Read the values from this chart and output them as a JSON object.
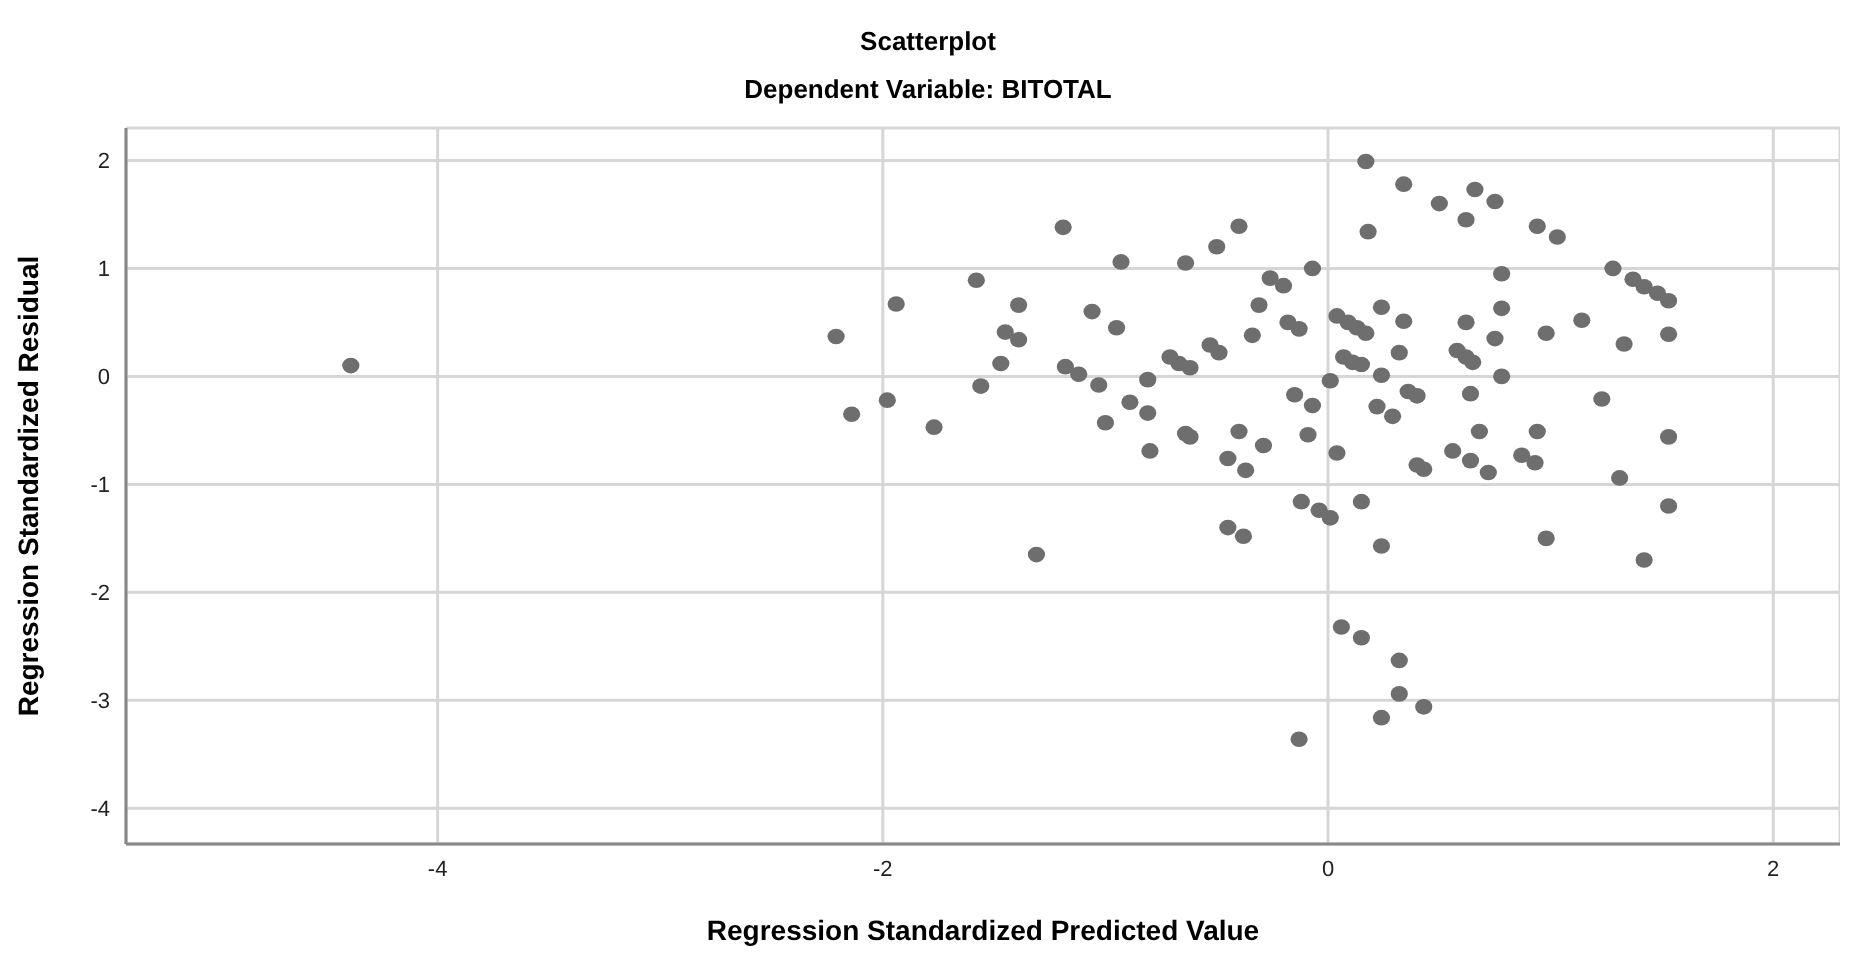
{
  "chart_data": {
    "type": "scatter",
    "title": "Scatterplot",
    "subtitle": "Dependent Variable: BITOTAL",
    "xlabel": "Regression Standardized Predicted Value",
    "ylabel": "Regression Standardized Residual",
    "xlim": [
      -5.4,
      2.3
    ],
    "ylim": [
      -4.33,
      2.3
    ],
    "xticks": [
      -4,
      -2,
      0,
      2
    ],
    "yticks": [
      -4,
      -3,
      -2,
      -1,
      0,
      1,
      2
    ],
    "grid": true,
    "marker": "circle",
    "series": [
      {
        "color": "#6e6e6e",
        "x": [
          -4.39,
          -2.21,
          -2.14,
          -1.94,
          -1.98,
          -1.77,
          -1.58,
          -1.39,
          -1.45,
          -1.39,
          -1.47,
          -1.56,
          -1.31,
          -1.19,
          -0.93,
          -1.06,
          -0.95,
          -1.18,
          -1.12,
          -1.03,
          -1.0,
          -0.89,
          -0.81,
          -0.81,
          -0.8,
          -0.64,
          -0.5,
          -0.4,
          -0.71,
          -0.67,
          -0.62,
          -0.53,
          -0.49,
          -0.64,
          -0.62,
          -0.4,
          -0.29,
          -0.45,
          -0.37,
          -0.45,
          -0.38,
          -0.34,
          -0.31,
          -0.26,
          -0.2,
          -0.18,
          -0.13,
          -0.07,
          -0.15,
          -0.07,
          0.01,
          -0.09,
          0.04,
          -0.12,
          -0.04,
          0.01,
          0.15,
          0.24,
          -0.13,
          0.06,
          0.15,
          0.32,
          0.24,
          0.32,
          0.43,
          0.17,
          0.18,
          0.34,
          0.5,
          0.62,
          0.66,
          0.04,
          0.09,
          0.13,
          0.17,
          0.24,
          0.34,
          0.07,
          0.11,
          0.15,
          0.24,
          0.32,
          0.22,
          0.29,
          0.36,
          0.4,
          0.4,
          0.43,
          0.56,
          0.64,
          0.62,
          0.58,
          0.62,
          0.65,
          0.64,
          0.68,
          0.72,
          0.75,
          0.94,
          1.03,
          0.78,
          0.78,
          0.75,
          0.98,
          1.14,
          0.78,
          0.94,
          0.87,
          0.93,
          1.28,
          1.37,
          1.42,
          1.48,
          1.53,
          1.33,
          1.53,
          1.23,
          1.31,
          1.53,
          1.53,
          0.98,
          1.42
        ],
        "values": [
          0.1,
          0.37,
          -0.35,
          0.67,
          -0.22,
          -0.47,
          0.89,
          0.66,
          0.41,
          0.34,
          0.12,
          -0.09,
          -1.65,
          1.38,
          1.06,
          0.6,
          0.45,
          0.09,
          0.02,
          -0.08,
          -0.43,
          -0.24,
          -0.03,
          -0.34,
          -0.69,
          1.05,
          1.2,
          1.39,
          0.18,
          0.12,
          0.08,
          0.29,
          0.22,
          -0.53,
          -0.56,
          -0.51,
          -0.64,
          -0.76,
          -0.87,
          -1.4,
          -1.48,
          0.38,
          0.66,
          0.91,
          0.84,
          0.5,
          0.44,
          1.0,
          -0.17,
          -0.27,
          -0.04,
          -0.54,
          -0.71,
          -1.16,
          -1.24,
          -1.31,
          -1.16,
          -1.57,
          -3.36,
          -2.32,
          -2.42,
          -2.63,
          -3.16,
          -2.94,
          -3.06,
          1.99,
          1.34,
          1.78,
          1.6,
          1.45,
          1.73,
          0.56,
          0.5,
          0.45,
          0.4,
          0.64,
          0.51,
          0.18,
          0.13,
          0.11,
          0.01,
          0.22,
          -0.28,
          -0.37,
          -0.14,
          -0.18,
          -0.82,
          -0.86,
          -0.69,
          -0.78,
          0.5,
          0.24,
          0.18,
          0.13,
          -0.16,
          -0.51,
          -0.89,
          1.62,
          1.39,
          1.29,
          0.95,
          0.63,
          0.35,
          0.4,
          0.52,
          0.0,
          -0.51,
          -0.73,
          -0.8,
          1.0,
          0.9,
          0.83,
          0.77,
          0.7,
          0.3,
          0.39,
          -0.21,
          -0.94,
          -0.56,
          -1.2,
          -1.5,
          -1.7
        ]
      }
    ]
  }
}
